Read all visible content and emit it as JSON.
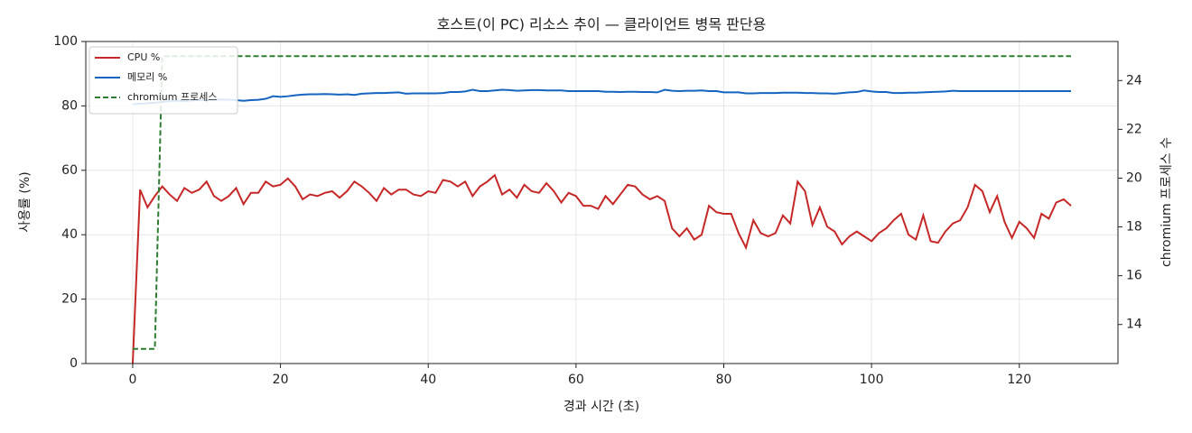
{
  "chart_data": {
    "type": "line",
    "title": "호스트(이 PC) 리소스 추이 — 클라이언트 병목 판단용",
    "x_label": "경과 시간 (초)",
    "y_label": "사용률 (%)",
    "y2_label": "chromium 프로세스 수",
    "x": [
      0,
      1,
      2,
      3,
      4,
      5,
      6,
      7,
      8,
      9,
      10,
      11,
      12,
      13,
      14,
      15,
      16,
      17,
      18,
      19,
      20,
      21,
      22,
      23,
      24,
      25,
      26,
      27,
      28,
      29,
      30,
      31,
      32,
      33,
      34,
      35,
      36,
      37,
      38,
      39,
      40,
      41,
      42,
      43,
      44,
      45,
      46,
      47,
      48,
      49,
      50,
      51,
      52,
      53,
      54,
      55,
      56,
      57,
      58,
      59,
      60,
      61,
      62,
      63,
      64,
      65,
      66,
      67,
      68,
      69,
      70,
      71,
      72,
      73,
      74,
      75,
      76,
      77,
      78,
      79,
      80,
      81,
      82,
      83,
      84,
      85,
      86,
      87,
      88,
      89,
      90,
      91,
      92,
      93,
      94,
      95,
      96,
      97,
      98,
      99,
      100,
      101,
      102,
      103,
      104,
      105,
      106,
      107,
      108,
      109,
      110,
      111,
      112,
      113,
      114,
      115,
      116,
      117,
      118,
      119,
      120,
      121,
      122,
      123,
      124,
      125,
      126,
      127
    ],
    "series": [
      {
        "name": "CPU %",
        "color": "#c62828",
        "linestyle": "solid",
        "values": [
          0,
          54,
          48.5,
          52,
          55,
          52.5,
          50.5,
          54.5,
          53,
          54,
          56.5,
          52,
          50.5,
          52,
          54.5,
          49.5,
          53,
          53,
          56.5,
          55,
          55.5,
          57.5,
          55,
          51,
          52.5,
          52,
          53,
          53.5,
          51.5,
          53.5,
          56.5,
          55,
          53,
          50.5,
          54.5,
          52.5,
          54,
          54,
          52.5,
          52,
          53.5,
          53,
          57,
          56.5,
          55,
          56.5,
          52,
          55,
          56.5,
          58.5,
          52.5,
          54,
          51.5,
          55.5,
          53.5,
          53,
          56,
          53.5,
          50,
          53,
          52,
          49,
          49,
          48,
          52,
          49.5,
          52.5,
          55.5,
          55,
          52.5,
          51,
          52,
          50.5,
          42,
          39.5,
          42,
          38.5,
          40,
          49,
          47,
          46.5,
          46.5,
          40.5,
          36,
          44.5,
          40.5,
          39.5,
          40.5,
          46,
          43.5,
          56.5,
          53.5,
          43,
          48.5,
          42.5,
          41,
          37,
          39.5,
          41,
          39.5,
          38,
          40.5,
          42,
          44.5,
          46.5,
          40,
          38.5,
          46,
          38,
          37.5,
          41,
          43.5,
          44.5,
          48.5,
          55.5,
          53.5,
          47,
          52,
          44,
          39,
          44,
          42,
          39,
          46.5,
          45,
          50,
          51,
          49
        ]
      },
      {
        "name": "메모리 %",
        "color": "#1565c0",
        "linestyle": "solid",
        "values": [
          80.5,
          80.7,
          80.8,
          81,
          81.2,
          81.5,
          81.6,
          81.5,
          81.7,
          81.8,
          81.8,
          81.9,
          82,
          81.9,
          81.8,
          81.6,
          81.8,
          81.9,
          82.2,
          83,
          82.8,
          83,
          83.3,
          83.5,
          83.6,
          83.6,
          83.7,
          83.6,
          83.5,
          83.6,
          83.4,
          83.8,
          83.9,
          84,
          84,
          84.1,
          84.2,
          83.8,
          83.9,
          83.9,
          83.9,
          83.9,
          84,
          84.3,
          84.3,
          84.5,
          85,
          84.6,
          84.6,
          84.8,
          85,
          84.9,
          84.7,
          84.8,
          84.9,
          84.9,
          84.8,
          84.8,
          84.8,
          84.6,
          84.6,
          84.6,
          84.6,
          84.6,
          84.4,
          84.4,
          84.3,
          84.4,
          84.4,
          84.3,
          84.3,
          84.2,
          85,
          84.7,
          84.6,
          84.7,
          84.7,
          84.8,
          84.6,
          84.6,
          84.2,
          84.2,
          84.2,
          83.9,
          83.9,
          84,
          84,
          84,
          84.1,
          84.1,
          84.1,
          84,
          84,
          83.9,
          83.9,
          83.8,
          84,
          84.2,
          84.3,
          84.8,
          84.5,
          84.3,
          84.3,
          84,
          84,
          84.1,
          84.1,
          84.2,
          84.3,
          84.4,
          84.5,
          84.7,
          84.6,
          84.6,
          84.6,
          84.6,
          84.6,
          84.6,
          84.6,
          84.6,
          84.6,
          84.6,
          84.6,
          84.6,
          84.6,
          84.6,
          84.6,
          84.6
        ]
      },
      {
        "name": "chromium 프로세스",
        "color": "#2e7d32",
        "linestyle": "dashed",
        "axis": "y2",
        "values": [
          13,
          13,
          13,
          13,
          25,
          25,
          25,
          25,
          25,
          25,
          25,
          25,
          25,
          25,
          25,
          25,
          25,
          25,
          25,
          25,
          25,
          25,
          25,
          25,
          25,
          25,
          25,
          25,
          25,
          25,
          25,
          25,
          25,
          25,
          25,
          25,
          25,
          25,
          25,
          25,
          25,
          25,
          25,
          25,
          25,
          25,
          25,
          25,
          25,
          25,
          25,
          25,
          25,
          25,
          25,
          25,
          25,
          25,
          25,
          25,
          25,
          25,
          25,
          25,
          25,
          25,
          25,
          25,
          25,
          25,
          25,
          25,
          25,
          25,
          25,
          25,
          25,
          25,
          25,
          25,
          25,
          25,
          25,
          25,
          25,
          25,
          25,
          25,
          25,
          25,
          25,
          25,
          25,
          25,
          25,
          25,
          25,
          25,
          25,
          25,
          25,
          25,
          25,
          25,
          25,
          25,
          25,
          25,
          25,
          25,
          25,
          25,
          25,
          25,
          25,
          25,
          25,
          25,
          25,
          25,
          25,
          25,
          25,
          25,
          25,
          25,
          25,
          25
        ]
      }
    ],
    "xlim": [
      -6.35,
      133.35
    ],
    "xticks": [
      0,
      20,
      40,
      60,
      80,
      100,
      120
    ],
    "ylim": [
      0,
      100
    ],
    "yticks": [
      0,
      20,
      40,
      60,
      80,
      100
    ],
    "y2lim": [
      12.4,
      25.6
    ],
    "y2ticks": [
      14,
      16,
      18,
      20,
      22,
      24
    ],
    "grid": true,
    "legend": "upper left"
  }
}
